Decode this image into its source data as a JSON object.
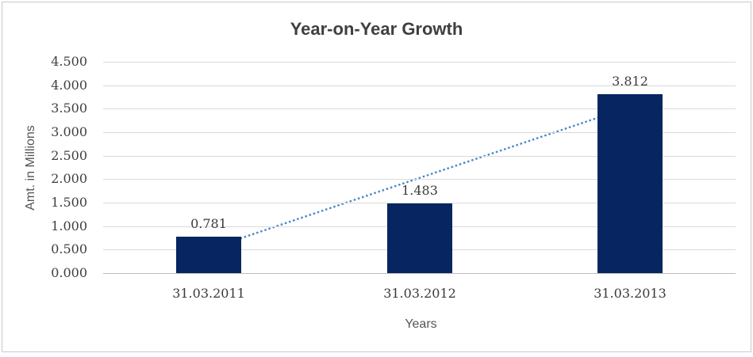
{
  "chart": {
    "background_color": "#FFFFFF",
    "border_color": "#C9C9C9"
  },
  "chart_data": {
    "type": "bar",
    "title": "Year-on-Year Growth",
    "xlabel": "Years",
    "ylabel": "Amt. in Millions",
    "categories": [
      "31.03.2011",
      "31.03.2012",
      "31.03.2013"
    ],
    "values": [
      0.781,
      1.483,
      3.812
    ],
    "data_labels": [
      "0.781",
      "1.483",
      "3.812"
    ],
    "ylim": [
      0,
      4.5
    ],
    "ytick_step": 0.5,
    "yticks": [
      "0.000",
      "0.500",
      "1.000",
      "1.500",
      "2.000",
      "2.500",
      "3.000",
      "3.500",
      "4.000",
      "4.500"
    ],
    "grid": "horizontal-only",
    "legend": "none",
    "bar_color": "#062561",
    "gridline_color": "#D9D9D9",
    "axisline_color": "#BDBDBD",
    "trendline": {
      "type": "linear",
      "style": "dotted",
      "color": "#4E87C8",
      "start_value": 0.51,
      "end_value": 3.54
    }
  }
}
